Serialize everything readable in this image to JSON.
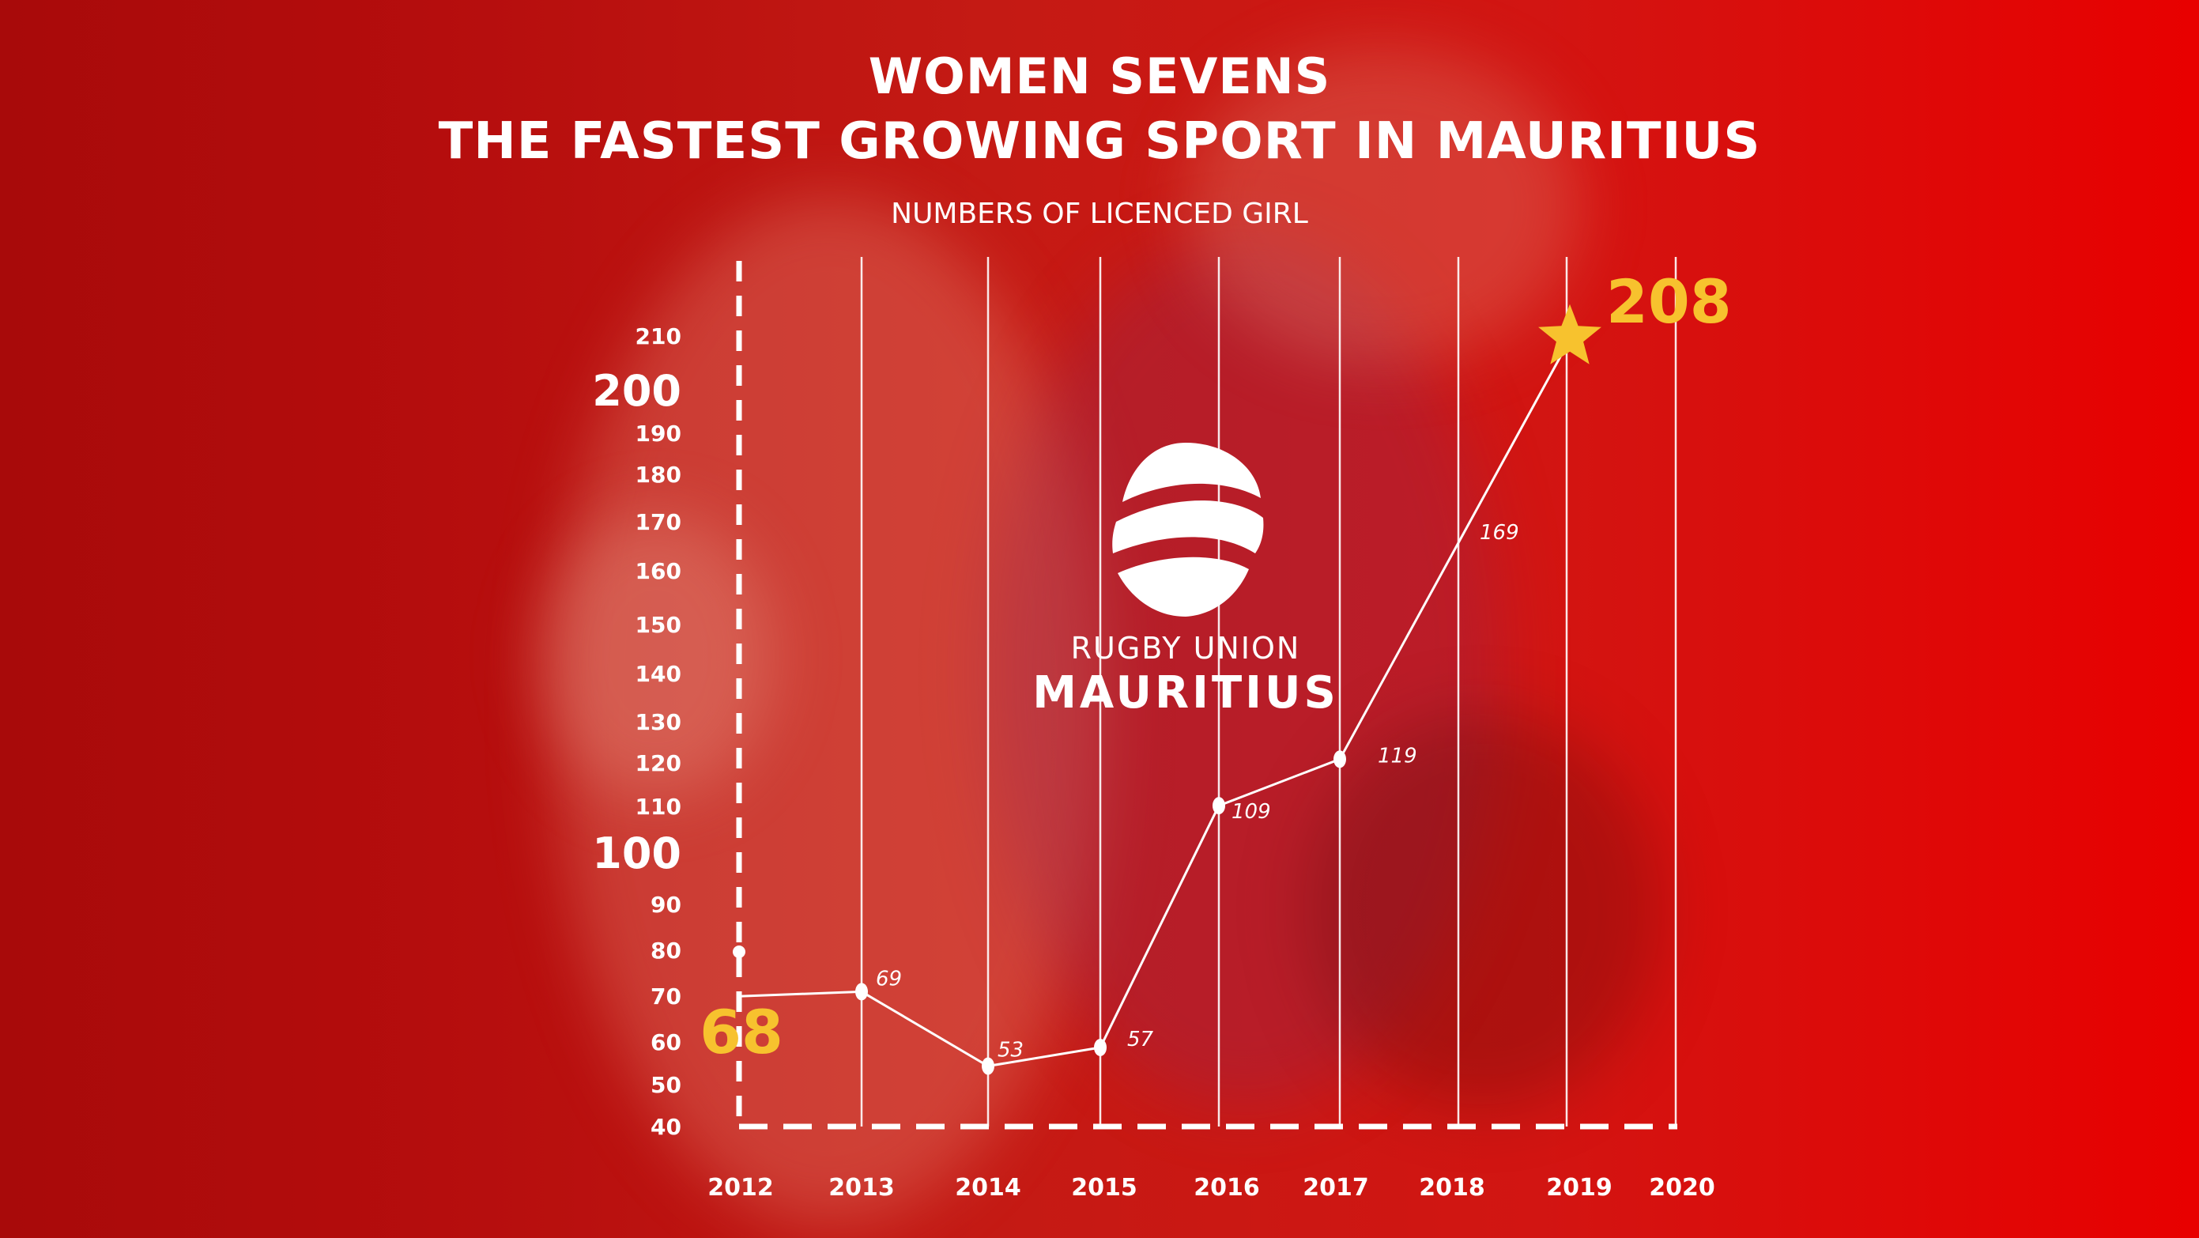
{
  "title_line_1": "WOMEN SEVENS",
  "title_line_2": "THE FASTEST GROWING SPORT IN MAURITIUS",
  "subtitle": "NUMBERS OF LICENCED GIRL",
  "logo": {
    "line_1": "RUGBY UNION",
    "line_2": "MAURITIUS"
  },
  "colors": {
    "accent": "#f7c22e",
    "line": "#ffffff"
  },
  "chart_data": {
    "type": "line",
    "categories": [
      "2012",
      "2013",
      "2014",
      "2015",
      "2016",
      "2017",
      "2018",
      "2019",
      "2020"
    ],
    "x": [
      2012,
      2013,
      2014,
      2015,
      2016,
      2017,
      2019
    ],
    "y": [
      68,
      69,
      53,
      57,
      109,
      119,
      208
    ],
    "point_labels": [
      "68",
      "69",
      "53",
      "57",
      "109",
      "119",
      "208"
    ],
    "y_ticks": [
      40,
      50,
      60,
      70,
      80,
      90,
      100,
      110,
      120,
      130,
      140,
      150,
      160,
      170,
      180,
      190,
      200,
      210
    ],
    "ylim": [
      40,
      210
    ],
    "annotation": "169",
    "title": "WOMEN SEVENS THE FASTEST GROWING SPORT IN MAURITIUS",
    "subtitle": "NUMBERS OF LICENCED GIRL",
    "grid": true,
    "highlight": {
      "last_point": "star",
      "first_point": "large label"
    }
  }
}
